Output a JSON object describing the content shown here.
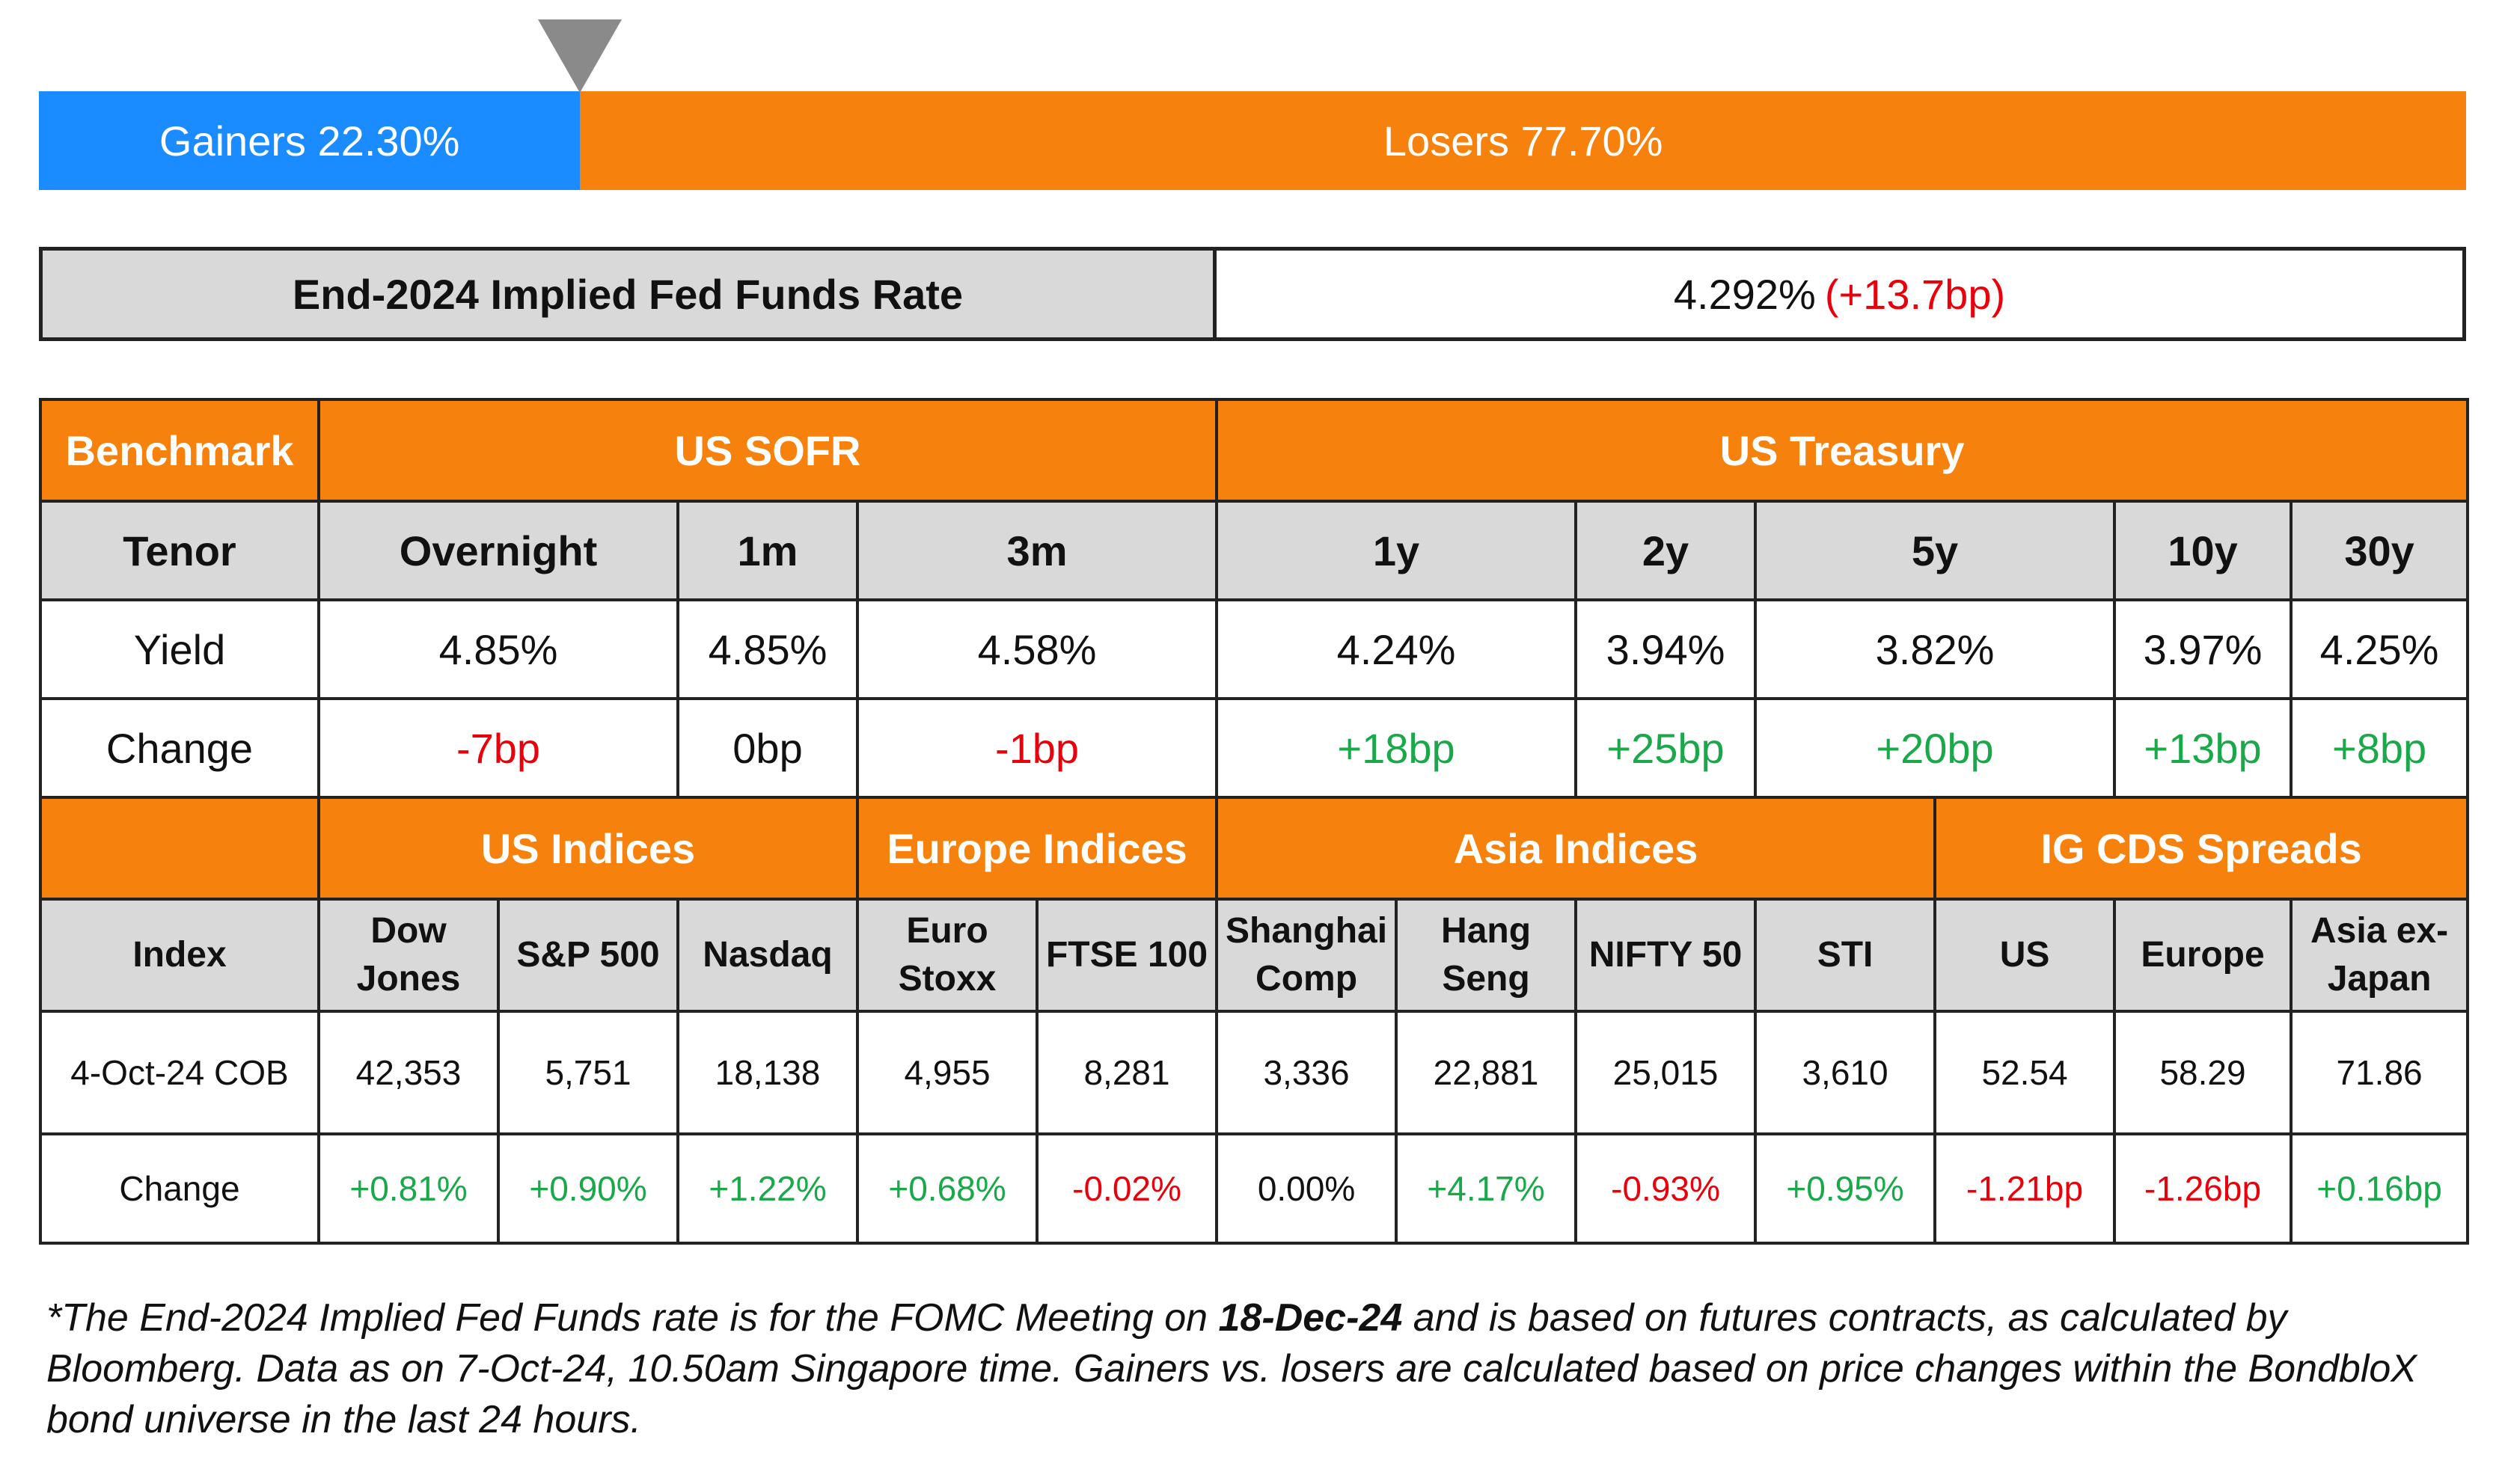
{
  "gainers_losers": {
    "gainers_label": "Gainers 22.30%",
    "losers_label": "Losers 77.70%",
    "gainers_share": 0.223,
    "colors": {
      "gainers": "#1a8cff",
      "losers": "#f6820d",
      "marker": "#8a8a8a"
    }
  },
  "fed": {
    "label": "End-2024 Implied Fed Funds Rate",
    "value": "4.292%",
    "change": "(+13.7bp)"
  },
  "rates": {
    "benchmark_label": "Benchmark",
    "group_sofr": "US SOFR",
    "group_treasury": "US Treasury",
    "tenor_label": "Tenor",
    "tenors": [
      "Overnight",
      "1m",
      "3m",
      "1y",
      "2y",
      "5y",
      "10y",
      "30y"
    ],
    "yield_label": "Yield",
    "yields": [
      "4.85%",
      "4.85%",
      "4.58%",
      "4.24%",
      "3.94%",
      "3.82%",
      "3.97%",
      "4.25%"
    ],
    "change_label": "Change",
    "changes": [
      "-7bp",
      "0bp",
      "-1bp",
      "+18bp",
      "+25bp",
      "+20bp",
      "+13bp",
      "+8bp"
    ]
  },
  "indices": {
    "group_us": "US Indices",
    "group_europe": "Europe Indices",
    "group_asia": "Asia Indices",
    "group_cds": "IG CDS Spreads",
    "index_label": "Index",
    "names": [
      [
        "Dow",
        "Jones"
      ],
      [
        "S&P 500"
      ],
      [
        "Nasdaq"
      ],
      [
        "Euro",
        "Stoxx"
      ],
      [
        "FTSE 100"
      ],
      [
        "Shanghai",
        "Comp"
      ],
      [
        "Hang",
        "Seng"
      ],
      [
        "NIFTY 50"
      ],
      [
        "STI"
      ],
      [
        "US"
      ],
      [
        "Europe"
      ],
      [
        "Asia ex-",
        "Japan"
      ]
    ],
    "cob_label": "4-Oct-24 COB",
    "values": [
      "42,353",
      "5,751",
      "18,138",
      "4,955",
      "8,281",
      "3,336",
      "22,881",
      "25,015",
      "3,610",
      "52.54",
      "58.29",
      "71.86"
    ],
    "change_label": "Change",
    "changes": [
      "+0.81%",
      "+0.90%",
      "+1.22%",
      "+0.68%",
      "-0.02%",
      "0.00%",
      "+4.17%",
      "-0.93%",
      "+0.95%",
      "-1.21bp",
      "-1.26bp",
      "+0.16bp"
    ]
  },
  "colors": {
    "orange": "#f6820d",
    "grey": "#d9d9d9",
    "positive": "#1aa84a",
    "negative": "#e8000b"
  },
  "footnote": {
    "part1": "*The End-2024 Implied Fed Funds rate is for the FOMC Meeting on ",
    "bold": "18-Dec-24",
    "part2": " and is based on futures contracts, as calculated by Bloomberg. Data as on 7-Oct-24, 10.50am Singapore time. Gainers vs. losers are calculated based on price changes within the BondbloX bond universe in the last 24 hours."
  }
}
